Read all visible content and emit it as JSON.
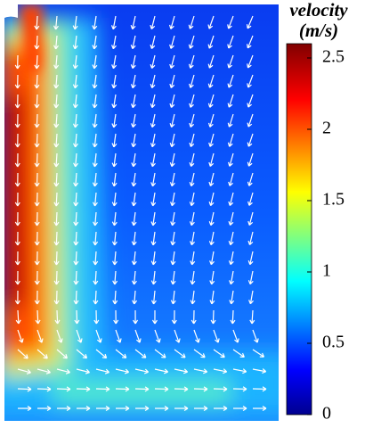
{
  "chart_data": {
    "type": "field",
    "colorbar_title": "velocity",
    "colorbar_unit": "(m/s)",
    "clim": [
      0,
      2.6
    ],
    "cticks": [
      0,
      0.5,
      1,
      1.5,
      2,
      2.5
    ]
  }
}
